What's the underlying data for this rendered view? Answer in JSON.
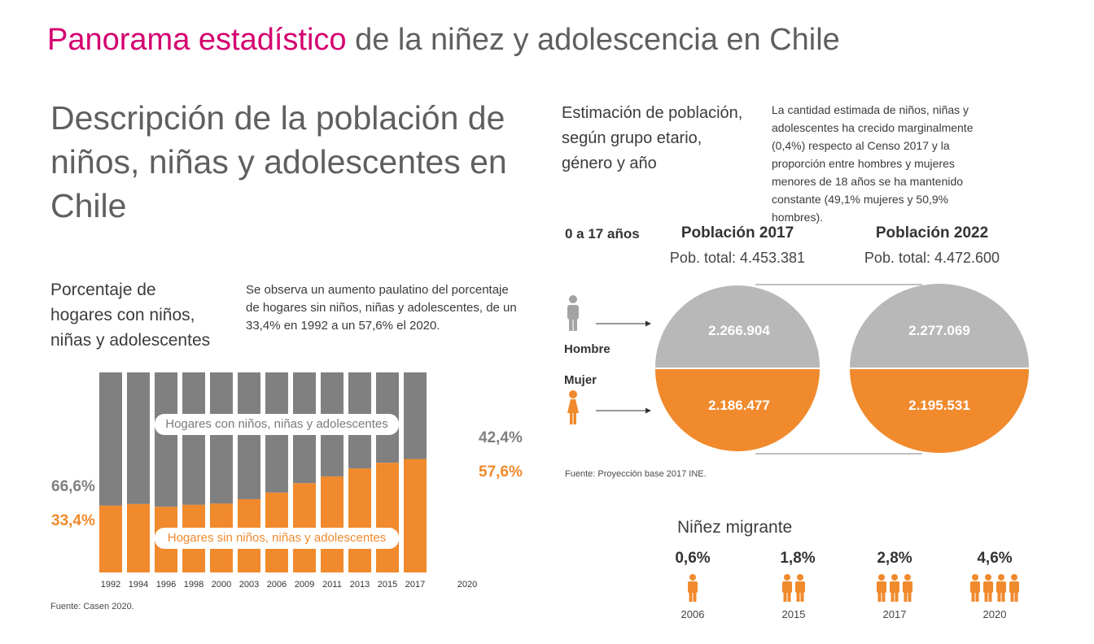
{
  "header": {
    "title_accent": "Panorama estadístico",
    "title_rest": " de la niñez y adolescencia en Chile"
  },
  "section_title": "Descripción de la población de niños, niñas y adolescentes en Chile",
  "households": {
    "subtitle": "Porcentaje de hogares con niños, niñas y adolescentes",
    "description": "Se observa un aumento paulatino del porcentaje de hogares sin niños, niñas y adolescentes, de un 33,4% en 1992 a un 57,6% el 2020.",
    "label_with": "Hogares con niños, niñas y adolescentes",
    "label_without": "Hogares sin niños, niñas y adolescentes",
    "start_with_pct": "66,6%",
    "start_without_pct": "33,4%",
    "end_with_pct": "42,4%",
    "end_without_pct": "57,6%",
    "source": "Fuente: Casen 2020."
  },
  "population": {
    "subtitle": "Estimación de población, según grupo etario, género y año",
    "description": "La cantidad estimada de niños, niñas y adolescentes ha crecido marginalmente (0,4%) respecto al Censo 2017 y la proporción entre hombres y mujeres menores de 18 años se ha mantenido constante (49,1% mujeres y 50,9% hombres).",
    "age_group": "0 a 17 años",
    "male_label": "Hombre",
    "female_label": "Mujer",
    "source": "Fuente: Proyección base 2017 INE.",
    "years": [
      {
        "title": "Población 2017",
        "total": "Pob. total:  4.453.381",
        "male": "2.266.904",
        "female": "2.186.477"
      },
      {
        "title": "Población 2022",
        "total": "Pob. total:  4.472.600",
        "male": "2.277.069",
        "female": "2.195.531"
      }
    ]
  },
  "migrant": {
    "title": "Niñez migrante",
    "items": [
      {
        "pct": "0,6%",
        "year": "2006",
        "icons": 1
      },
      {
        "pct": "1,8%",
        "year": "2015",
        "icons": 2
      },
      {
        "pct": "2,8%",
        "year": "2017",
        "icons": 3
      },
      {
        "pct": "4,6%",
        "year": "2020",
        "icons": 4
      }
    ]
  },
  "colors": {
    "accent": "#d4006f",
    "gray": "#808080",
    "orange": "#f08a2c",
    "circle_gray": "#b8b8b8",
    "circle_orange": "#f08a2c"
  },
  "chart_data": {
    "type": "bar",
    "stacked": true,
    "categories": [
      "1992",
      "1994",
      "1996",
      "1998",
      "2000",
      "2003",
      "2006",
      "2009",
      "2011",
      "2013",
      "2015",
      "2017",
      "2020"
    ],
    "series": [
      {
        "name": "Hogares sin niños, niñas y adolescentes",
        "values": [
          33.4,
          34.2,
          32.8,
          33.8,
          34.4,
          36.6,
          39.9,
          44.6,
          48.0,
          52.0,
          54.8,
          56.7,
          57.6
        ]
      },
      {
        "name": "Hogares con niños, niñas y adolescentes",
        "values": [
          66.6,
          65.8,
          67.2,
          66.2,
          65.6,
          63.4,
          60.1,
          55.4,
          52.0,
          48.0,
          45.2,
          43.3,
          42.4
        ]
      }
    ],
    "ylim": [
      0,
      100
    ],
    "xlabel": "",
    "ylabel": "",
    "title": ""
  }
}
